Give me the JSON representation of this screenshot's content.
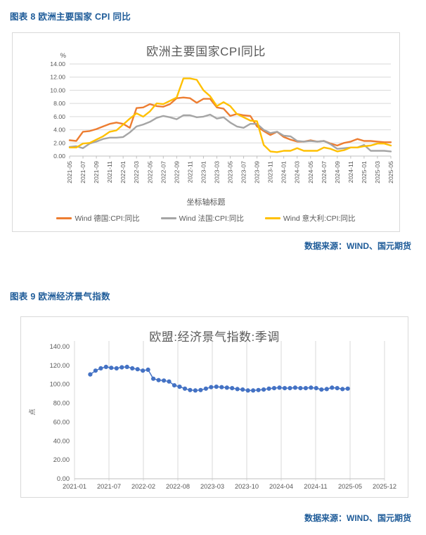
{
  "figures": {
    "fig8": {
      "heading": "图表 8 欧洲主要国家 CPI 同比",
      "source": "数据来源：WIND、国元期货"
    },
    "fig9": {
      "heading": "图表 9 欧洲经济景气指数",
      "source": "数据来源：WIND、国元期货"
    }
  },
  "colors": {
    "heading_blue": "#1F5C99",
    "germany_orange": "#ED7D31",
    "france_gray": "#A5A5A5",
    "italy_yellow": "#FFC000",
    "esi_blue": "#4472C4",
    "gridline": "#D9D9D9",
    "axis_line": "#BFBFBF",
    "tick_label": "#595959"
  },
  "chart_data": [
    {
      "type": "line",
      "title": "欧洲主要国家CPI同比",
      "y_unit_label": "%",
      "xlabel": "坐标轴标题",
      "ylabel": "",
      "ylim": [
        0,
        14
      ],
      "ytick_step": 2,
      "ytick_labels": [
        "0.00",
        "2.00",
        "4.00",
        "6.00",
        "8.00",
        "10.00",
        "12.00",
        "14.00"
      ],
      "grid": "horizontal",
      "legend_position": "bottom",
      "x_monthly_start": "2021-05",
      "x_monthly_end": "2025-05",
      "x_tick_labels": [
        "2021-05",
        "2021-07",
        "2021-09",
        "2021-11",
        "2022-01",
        "2022-03",
        "2022-05",
        "2022-07",
        "2022-09",
        "2022-11",
        "2023-01",
        "2023-03",
        "2023-05",
        "2023-07",
        "2023-09",
        "2023-11",
        "2024-01",
        "2024-03",
        "2024-05",
        "2024-07",
        "2024-09",
        "2024-11",
        "2025-01",
        "2025-03",
        "2025-05"
      ],
      "series": [
        {
          "name": "Wind 德国:CPI:同比",
          "color": "#ED7D31",
          "values": [
            2.4,
            2.3,
            3.7,
            3.8,
            4.1,
            4.5,
            4.9,
            5.1,
            4.9,
            4.3,
            7.3,
            7.4,
            7.9,
            7.6,
            7.5,
            7.9,
            8.8,
            8.9,
            8.8,
            8.1,
            8.7,
            8.7,
            7.4,
            7.2,
            6.1,
            6.4,
            6.2,
            6.1,
            4.5,
            3.8,
            3.2,
            3.7,
            2.9,
            2.5,
            2.2,
            2.2,
            2.4,
            2.2,
            2.3,
            1.9,
            1.6,
            2.0,
            2.2,
            2.6,
            2.3,
            2.3,
            2.2,
            2.1,
            2.1
          ]
        },
        {
          "name": "Wind 法国:CPI:同比",
          "color": "#A5A5A5",
          "values": [
            1.4,
            1.5,
            1.2,
            1.9,
            2.2,
            2.6,
            2.8,
            2.8,
            2.9,
            3.6,
            4.5,
            4.8,
            5.2,
            5.8,
            6.1,
            5.9,
            5.6,
            6.2,
            6.2,
            5.9,
            6.0,
            6.3,
            5.7,
            5.9,
            5.1,
            4.5,
            4.3,
            4.9,
            4.9,
            4.0,
            3.5,
            3.7,
            3.1,
            3.0,
            2.3,
            2.2,
            2.3,
            2.2,
            2.3,
            1.8,
            1.1,
            1.2,
            1.3,
            1.3,
            1.7,
            0.8,
            0.8,
            0.8,
            0.7
          ]
        },
        {
          "name": "Wind 意大利:CPI:同比",
          "color": "#FFC000",
          "values": [
            1.3,
            1.3,
            1.9,
            2.0,
            2.5,
            3.0,
            3.7,
            3.9,
            4.8,
            5.7,
            6.5,
            6.0,
            6.8,
            8.0,
            7.9,
            8.4,
            8.9,
            11.8,
            11.8,
            11.6,
            10.0,
            9.1,
            7.6,
            8.2,
            7.6,
            6.4,
            5.9,
            5.4,
            5.3,
            1.7,
            0.7,
            0.6,
            0.8,
            0.8,
            1.2,
            0.8,
            0.8,
            0.8,
            1.3,
            1.1,
            0.7,
            0.9,
            1.3,
            1.3,
            1.5,
            1.6,
            1.9,
            1.9,
            1.6
          ]
        }
      ]
    },
    {
      "type": "line",
      "title": "欧盟:经济景气指数:季调",
      "xlabel": "",
      "ylabel": "点",
      "ylim": [
        0,
        140
      ],
      "ytick_step": 20,
      "ytick_labels": [
        "0.00",
        "20.00",
        "40.00",
        "60.00",
        "80.00",
        "100.00",
        "120.00",
        "140.00"
      ],
      "grid": "vertical",
      "marker": "circle",
      "x_axis_start": "2021-01",
      "x_axis_end": "2025-12",
      "x_tick_labels": [
        "2021-01",
        "2021-07",
        "2022-02",
        "2022-08",
        "2023-03",
        "2023-10",
        "2024-04",
        "2024-11",
        "2025-05",
        "2025-12"
      ],
      "series_start_month": "2021-04",
      "series": [
        {
          "name": "欧盟:经济景气指数:季调",
          "color": "#4472C4",
          "values": [
            110.5,
            114.5,
            117.0,
            118.5,
            117.5,
            117.0,
            118.0,
            118.5,
            117.0,
            116.0,
            114.5,
            115.5,
            106.0,
            104.5,
            104.0,
            103.0,
            99.0,
            97.5,
            95.5,
            94.0,
            93.5,
            94.0,
            95.5,
            97.0,
            97.5,
            97.0,
            96.5,
            96.0,
            95.0,
            94.5,
            93.5,
            93.5,
            94.0,
            94.5,
            95.5,
            96.0,
            96.5,
            96.0,
            96.0,
            96.5,
            96.0,
            96.0,
            96.5,
            96.0,
            94.5,
            95.0,
            96.5,
            96.0,
            95.0,
            95.5
          ]
        }
      ]
    }
  ]
}
